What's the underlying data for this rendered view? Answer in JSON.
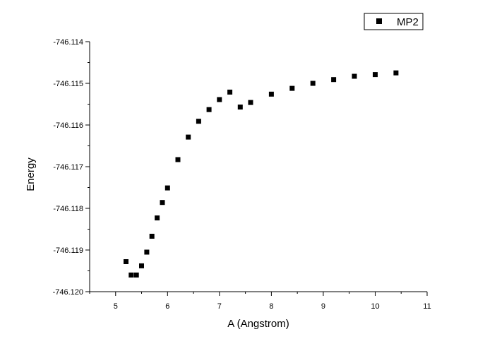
{
  "chart_data": {
    "type": "scatter",
    "title": "",
    "xlabel": "A (Angstrom)",
    "ylabel": "Energy",
    "xlim": [
      4.5,
      11
    ],
    "ylim": [
      -746.12,
      -746.114
    ],
    "x_ticks": [
      "5",
      "6",
      "7",
      "8",
      "9",
      "10",
      "11"
    ],
    "y_ticks": [
      "-746.114",
      "-746.115",
      "-746.116",
      "-746.117",
      "-746.118",
      "-746.119",
      "-746.120"
    ],
    "grid": false,
    "legend_position": "top-right",
    "marker_color": "#000000",
    "series": [
      {
        "name": "MP2",
        "marker": "square",
        "x": [
          5.2,
          5.3,
          5.4,
          5.5,
          5.6,
          5.7,
          5.8,
          5.9,
          6.0,
          6.2,
          6.4,
          6.6,
          6.8,
          7.0,
          7.2,
          7.4,
          7.6,
          8.0,
          8.4,
          8.8,
          9.2,
          9.6,
          10.0,
          10.4
        ],
        "y": [
          -746.11928,
          -746.1196,
          -746.1196,
          -746.11938,
          -746.11905,
          -746.11867,
          -746.11823,
          -746.11786,
          -746.11751,
          -746.11683,
          -746.11629,
          -746.11591,
          -746.11563,
          -746.11539,
          -746.11521,
          -746.11557,
          -746.11546,
          -746.11526,
          -746.11512,
          -746.115,
          -746.11491,
          -746.11483,
          -746.11479,
          -746.11475
        ]
      }
    ]
  }
}
